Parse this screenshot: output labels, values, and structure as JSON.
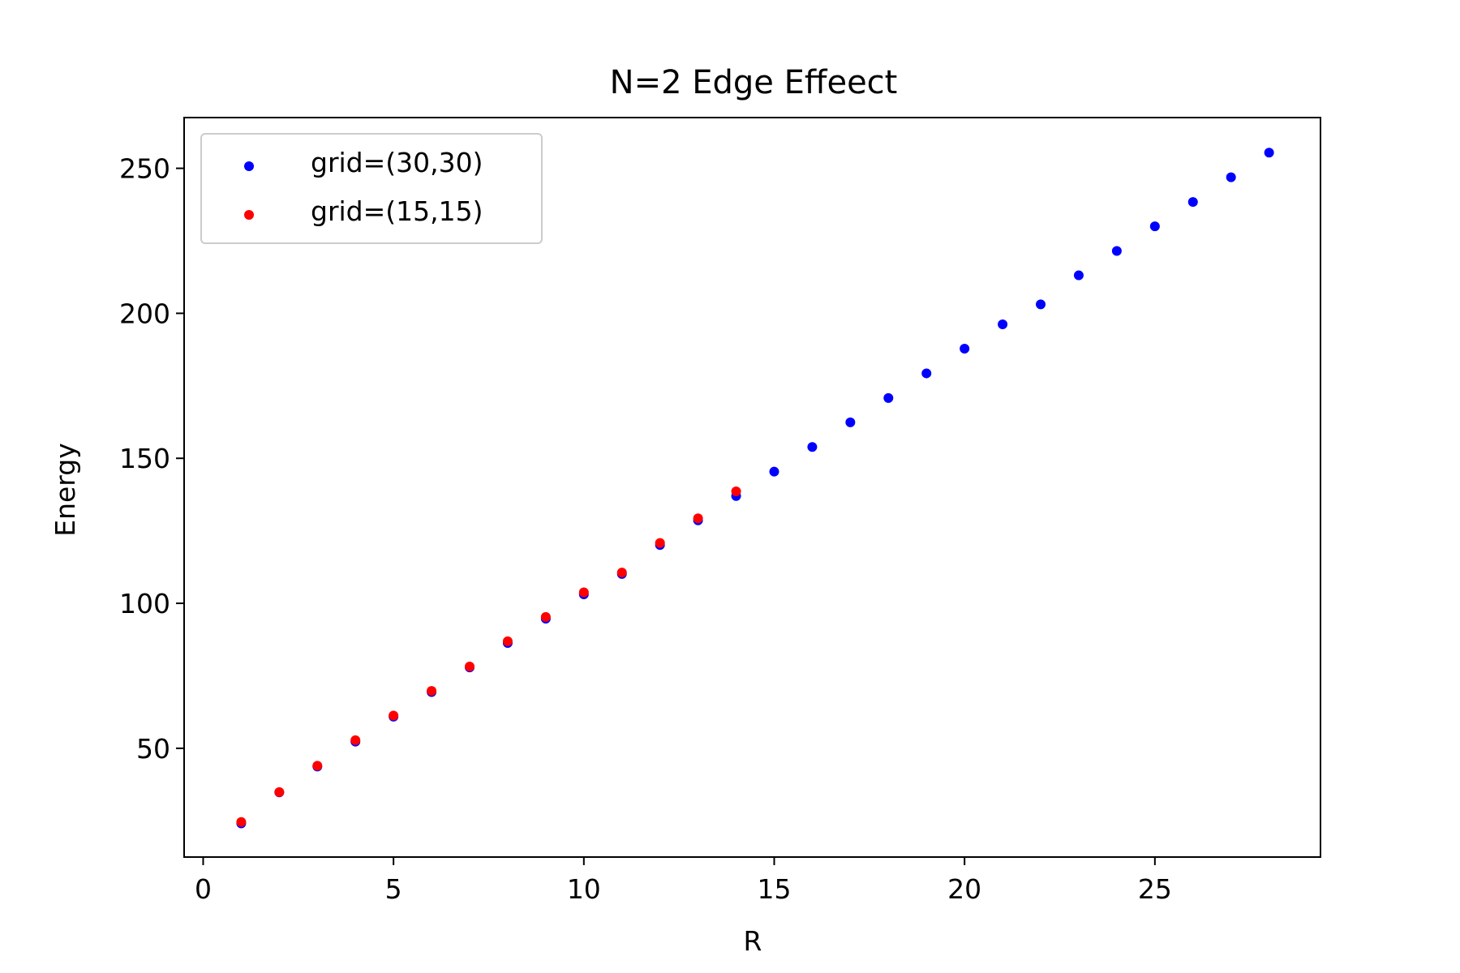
{
  "chart_data": {
    "type": "scatter",
    "title": "N=2 Edge Effeect",
    "xlabel": "R",
    "ylabel": "Energy",
    "xlim": [
      -0.5,
      29.35
    ],
    "ylim": [
      12.5,
      267.5
    ],
    "xticks": [
      0,
      5,
      10,
      15,
      20,
      25
    ],
    "yticks": [
      50,
      100,
      150,
      200,
      250
    ],
    "grid": false,
    "legend_position": "upper-left",
    "series": [
      {
        "name": "grid=(30,30)",
        "color": "#0000ff",
        "x": [
          1,
          2,
          3,
          4,
          5,
          6,
          7,
          8,
          9,
          10,
          11,
          12,
          13,
          14,
          15,
          16,
          17,
          18,
          19,
          20,
          21,
          22,
          23,
          24,
          25,
          26,
          27,
          28
        ],
        "y": [
          24.1,
          34.8,
          43.7,
          52.3,
          60.9,
          69.4,
          77.9,
          86.3,
          94.7,
          103.1,
          110.1,
          120.1,
          128.6,
          137.0,
          145.4,
          153.9,
          162.4,
          170.8,
          179.3,
          187.8,
          196.2,
          203.1,
          213.1,
          221.5,
          230.0,
          238.4,
          246.9,
          255.4
        ]
      },
      {
        "name": "grid=(15,15)",
        "color": "#ff0000",
        "x": [
          1,
          2,
          3,
          4,
          5,
          6,
          7,
          8,
          9,
          10,
          11,
          12,
          13,
          14
        ],
        "y": [
          24.6,
          34.9,
          44.0,
          52.8,
          61.3,
          69.8,
          78.2,
          86.9,
          95.3,
          103.8,
          110.6,
          120.8,
          129.3,
          138.6
        ]
      }
    ]
  }
}
